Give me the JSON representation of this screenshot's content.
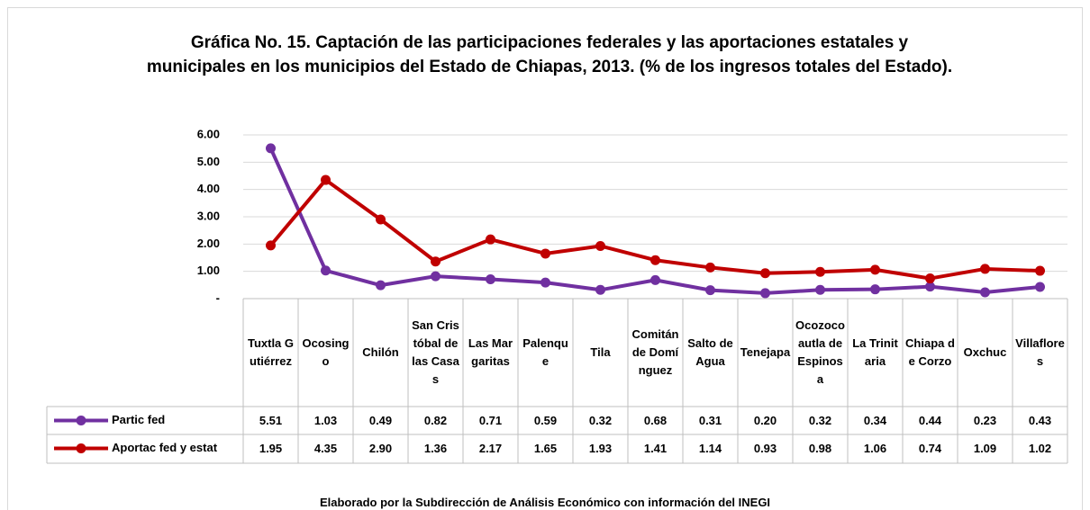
{
  "chart_data": {
    "type": "line",
    "title": "Gráfica No. 15. Captación de las participaciones federales y las aportaciones estatales y municipales en los municipios del Estado de Chiapas, 2013. (% de los ingresos totales del Estado).",
    "categories": [
      "Tuxtla Gutiérrez",
      "Ocosingo",
      "Chilón",
      "San Cristóbal de las Casas",
      "Las Margaritas",
      "Palenque",
      "Tila",
      "Comitán de Domínguez",
      "Salto de Agua",
      "Tenejapa",
      "Ocozocoautla de Espinosa",
      "La Trinitaria",
      "Chiapa de Corzo",
      "Oxchuc",
      "Villaflores"
    ],
    "series": [
      {
        "name": "Partic fed",
        "color": "#7030a0",
        "values": [
          5.51,
          1.03,
          0.49,
          0.82,
          0.71,
          0.59,
          0.32,
          0.68,
          0.31,
          0.2,
          0.32,
          0.34,
          0.44,
          0.23,
          0.43
        ],
        "value_labels": [
          "5.51",
          "1.03",
          "0.49",
          "0.82",
          "0.71",
          "0.59",
          "0.32",
          "0.68",
          "0.31",
          "0.20",
          "0.32",
          "0.34",
          "0.44",
          "0.23",
          "0.43"
        ]
      },
      {
        "name": "Aportac fed y estat",
        "color": "#c00000",
        "values": [
          1.95,
          4.35,
          2.9,
          1.36,
          2.17,
          1.65,
          1.93,
          1.41,
          1.14,
          0.93,
          0.98,
          1.06,
          0.74,
          1.09,
          1.02
        ],
        "value_labels": [
          "1.95",
          "4.35",
          "2.90",
          "1.36",
          "2.17",
          "1.65",
          "1.93",
          "1.41",
          "1.14",
          "0.93",
          "0.98",
          "1.06",
          "0.74",
          "1.09",
          "1.02"
        ]
      }
    ],
    "ylim": [
      0,
      6
    ],
    "yticks": [
      {
        "value": 0,
        "label": "-"
      },
      {
        "value": 1,
        "label": "1.00"
      },
      {
        "value": 2,
        "label": "2.00"
      },
      {
        "value": 3,
        "label": "3.00"
      },
      {
        "value": 4,
        "label": "4.00"
      },
      {
        "value": 5,
        "label": "5.00"
      },
      {
        "value": 6,
        "label": "6.00"
      }
    ],
    "grid": true,
    "source": "Elaborado por la Subdirección de Análisis Económico con información del INEGI"
  }
}
